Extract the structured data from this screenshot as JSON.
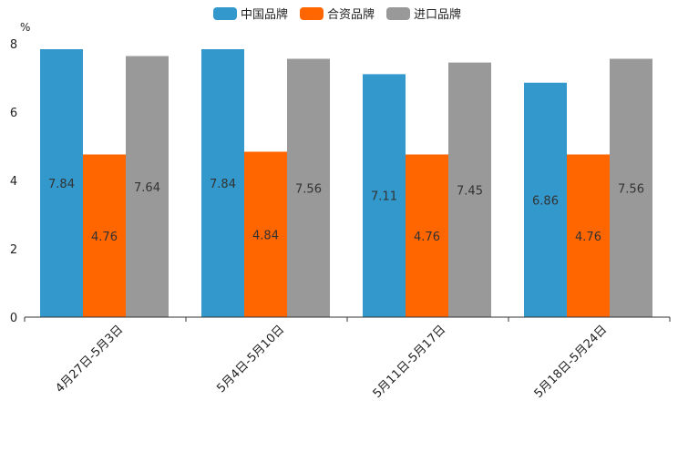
{
  "chart_data": {
    "type": "bar",
    "unit": "%",
    "categories": [
      "4月27日-5月3日",
      "5月4日-5月10日",
      "5月11日-5月17日",
      "5月18日-5月24日"
    ],
    "series": [
      {
        "name": "中国品牌",
        "color": "#3399cc",
        "values": [
          7.84,
          7.84,
          7.11,
          6.86
        ]
      },
      {
        "name": "合资品牌",
        "color": "#ff6600",
        "values": [
          4.76,
          4.84,
          4.76,
          4.76
        ]
      },
      {
        "name": "进口品牌",
        "color": "#999999",
        "values": [
          7.64,
          7.56,
          7.45,
          7.56
        ]
      }
    ],
    "ylim": [
      0,
      8
    ],
    "yticks": [
      0,
      2,
      4,
      6,
      8
    ],
    "legend_position": "top-center",
    "grid": false
  }
}
